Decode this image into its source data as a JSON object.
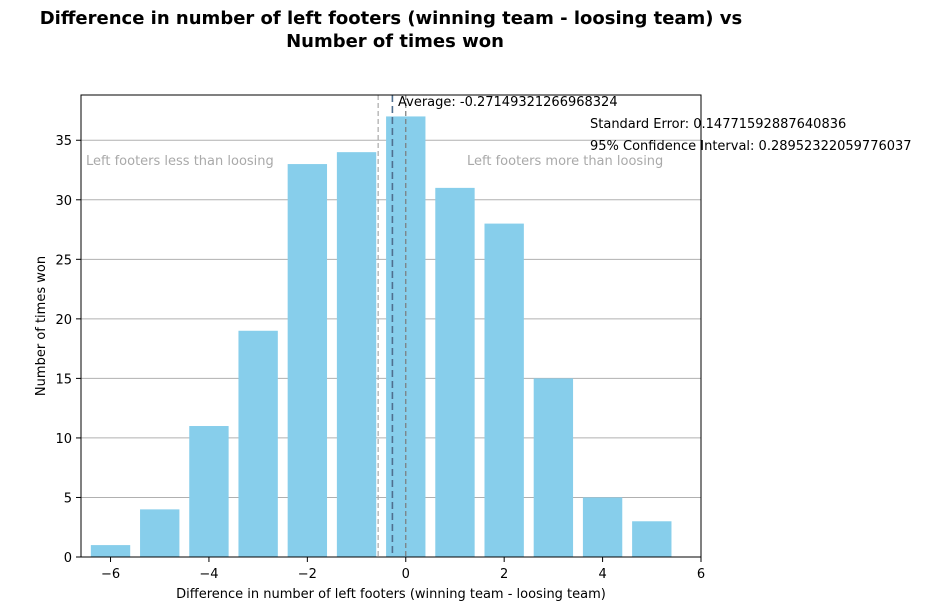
{
  "chart_data": {
    "type": "bar",
    "title_lines": [
      "Difference in number of left footers (winning team - loosing team) vs",
      "Number of times won"
    ],
    "xlabel": "Difference in number of left footers (winning team - loosing team)",
    "ylabel": "Number of times won",
    "x": [
      -6,
      -5,
      -4,
      -3,
      -2,
      -1,
      0,
      1,
      2,
      3,
      4,
      5
    ],
    "values": [
      1,
      4,
      11,
      19,
      33,
      34,
      37,
      31,
      28,
      15,
      5,
      3
    ],
    "xlim": [
      -6.6,
      6
    ],
    "ylim": [
      0,
      38.8
    ],
    "xticks": [
      -6,
      -4,
      -2,
      0,
      2,
      4,
      6
    ],
    "xtick_labels": [
      "−6",
      "−4",
      "−2",
      "0",
      "2",
      "4",
      "6"
    ],
    "yticks": [
      0,
      5,
      10,
      15,
      20,
      25,
      30,
      35
    ],
    "grid": "y",
    "bar_color": "#87ceeb",
    "average": -0.27149321266968324,
    "zero_line": 0,
    "ci_lower": -0.5610164332674435,
    "annotations": {
      "average": "Average: -0.27149321266968324",
      "std_error": "Standard Error: 0.14771592887640836",
      "ci": "95% Confidence Interval: 0.28952322059776037",
      "left_region": "Left footers less than loosing",
      "right_region": "Left footers more than loosing"
    }
  }
}
